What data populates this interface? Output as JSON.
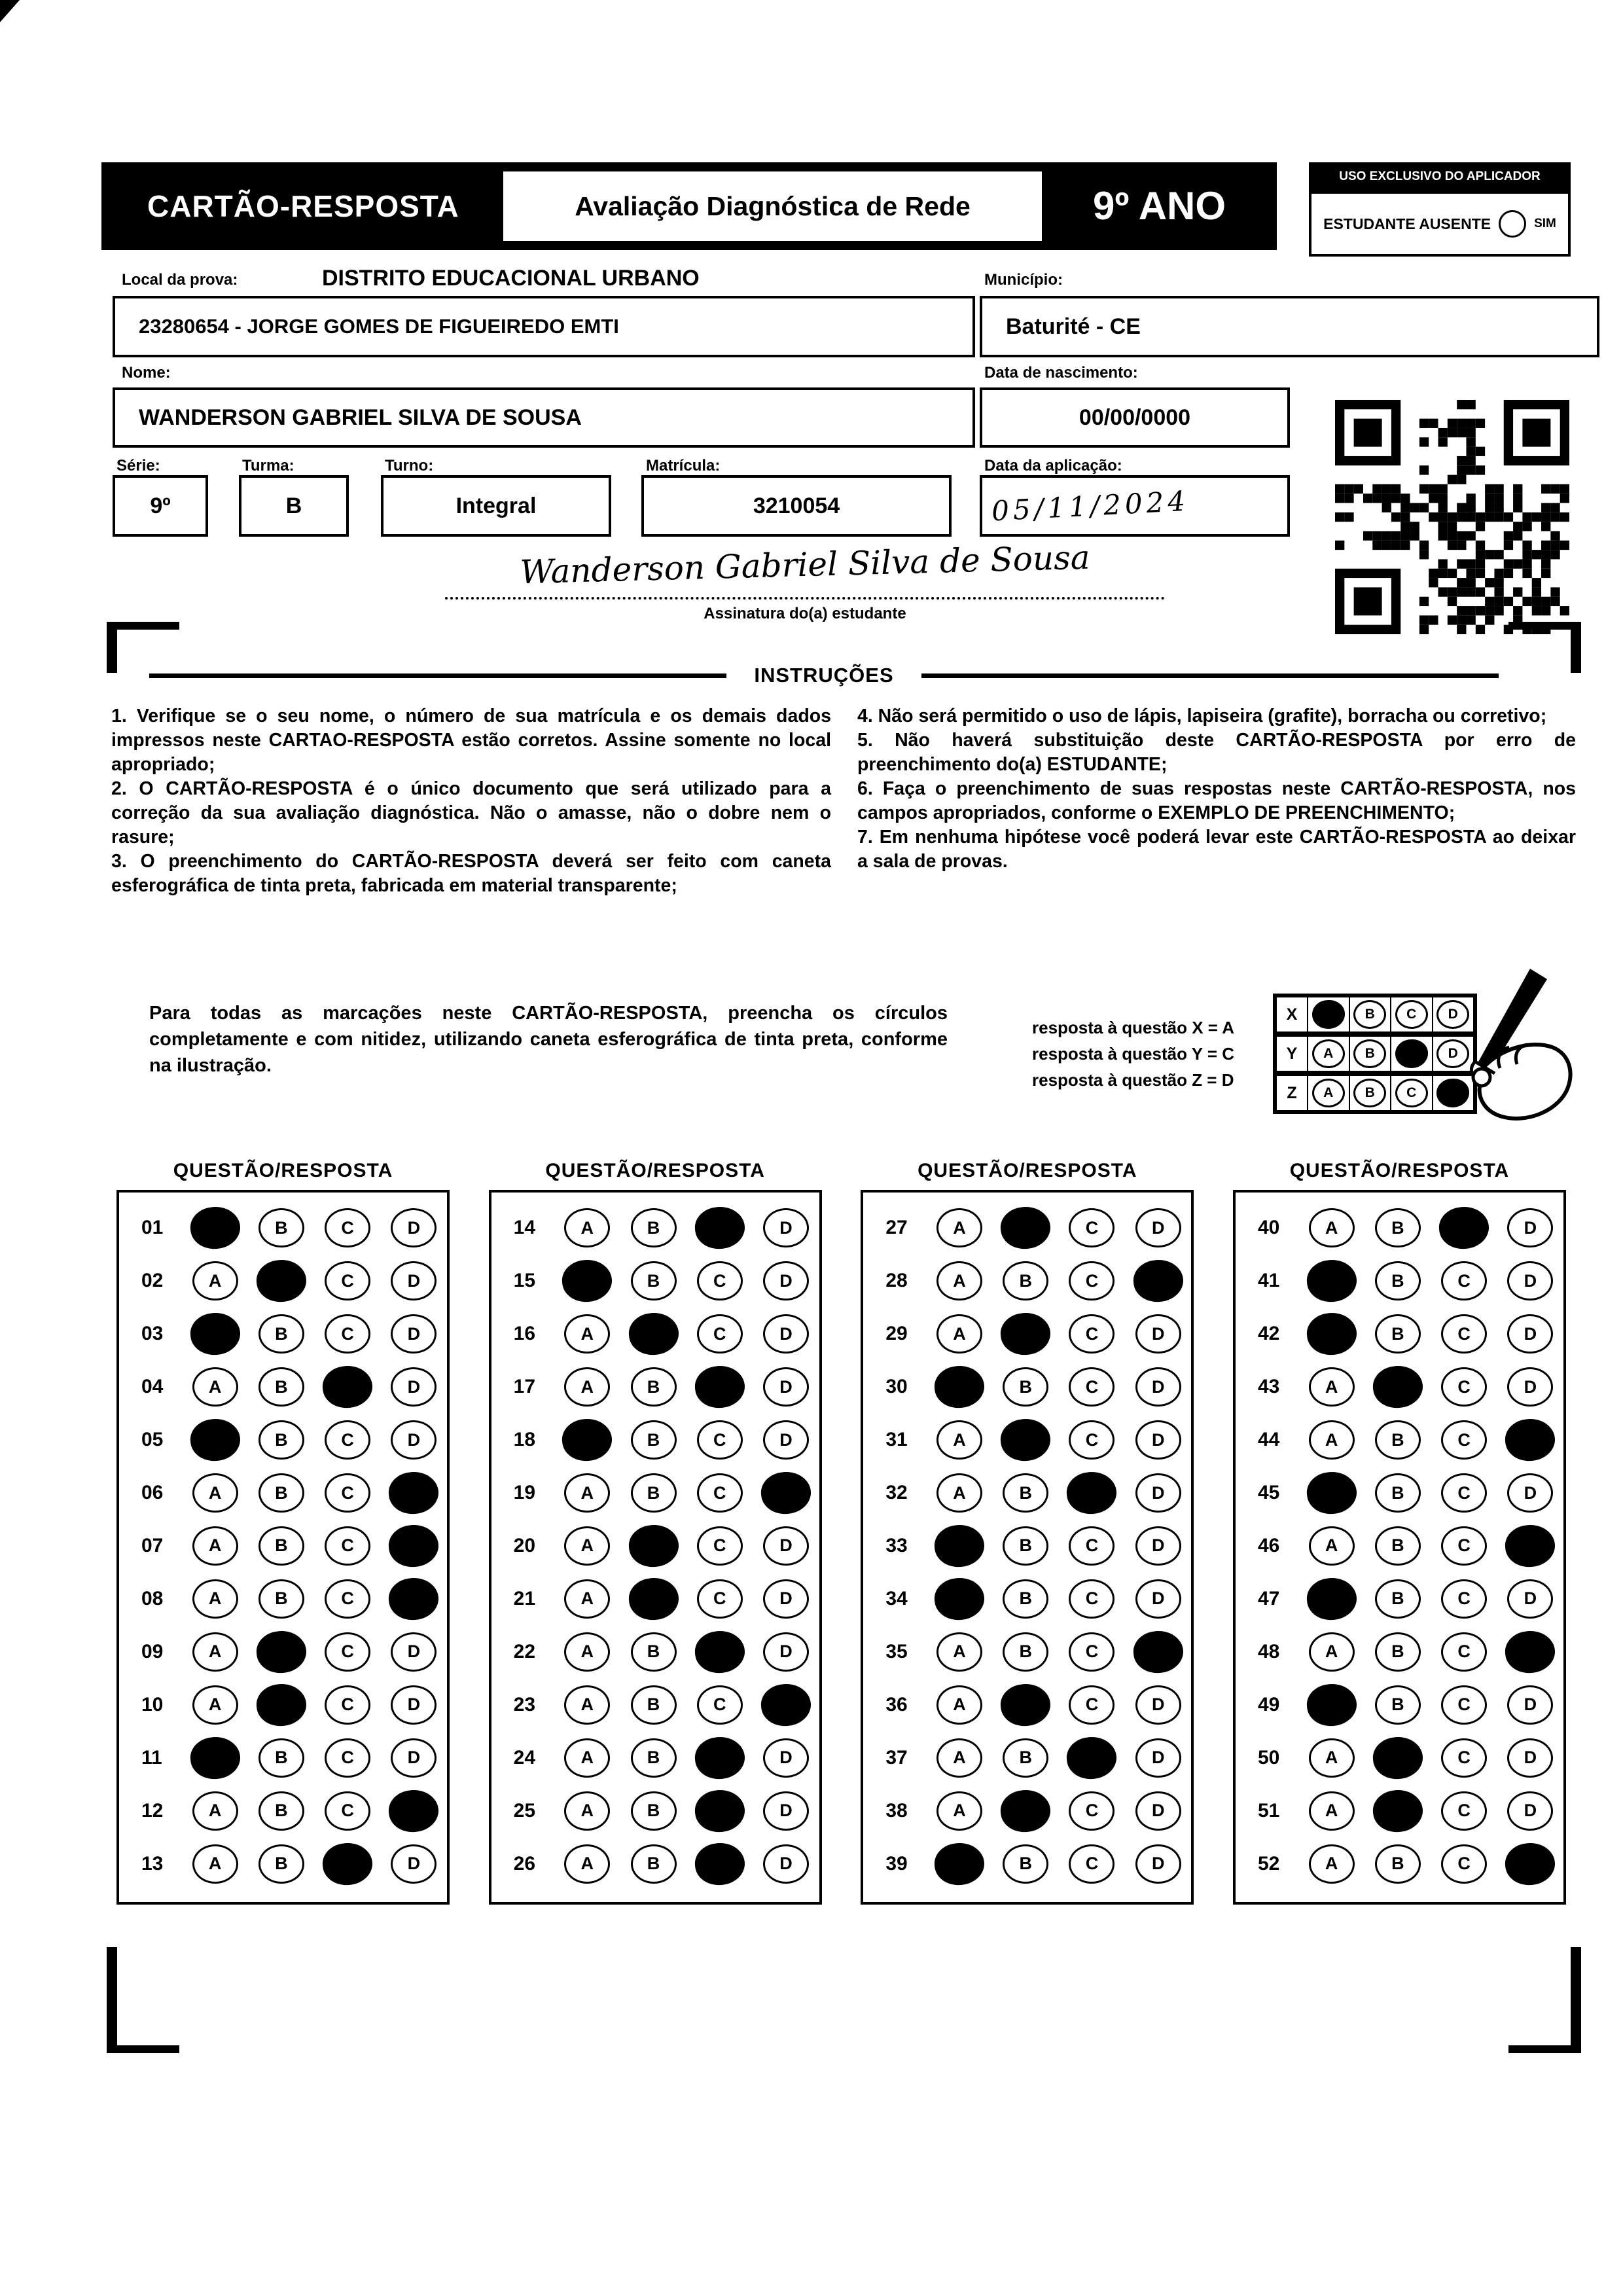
{
  "header": {
    "title": "CARTÃO-RESPOSTA",
    "subtitle": "Avaliação Diagnóstica de Rede",
    "grade": "9º ANO"
  },
  "aplicador": {
    "title": "USO EXCLUSIVO DO APLICADOR",
    "absent_label": "ESTUDANTE AUSENTE",
    "absent_option": "SIM"
  },
  "form": {
    "local_label": "Local da prova:",
    "local_value": "DISTRITO EDUCACIONAL URBANO",
    "school_value": "23280654 - JORGE GOMES DE FIGUEIREDO EMTI",
    "municipio_label": "Município:",
    "municipio_value": "Baturité - CE",
    "nome_label": "Nome:",
    "nome_value": "WANDERSON GABRIEL SILVA DE SOUSA",
    "nascimento_label": "Data de nascimento:",
    "nascimento_value": "00/00/0000",
    "serie_label": "Série:",
    "serie_value": "9º",
    "turma_label": "Turma:",
    "turma_value": "B",
    "turno_label": "Turno:",
    "turno_value": "Integral",
    "matricula_label": "Matrícula:",
    "matricula_value": "3210054",
    "aplicacao_label": "Data da aplicação:",
    "aplicacao_value": "05/11/2024",
    "assinatura_handwritten": "Wanderson Gabriel Silva de Sousa",
    "assinatura_label": "Assinatura do(a) estudante"
  },
  "instructions": {
    "title": "INSTRUÇÕES",
    "left": [
      "1. Verifique se o seu nome, o número de sua matrícula e os demais dados impressos neste CARTAO-RESPOSTA estão corretos. Assine somente no local apropriado;",
      "2. O CARTÃO-RESPOSTA é o único documento que será utilizado para a correção da sua avaliação diagnóstica. Não o amasse, não o dobre nem o rasure;",
      "3. O preenchimento do CARTÃO-RESPOSTA deverá ser feito com caneta esferográfica de tinta preta, fabricada em material transparente;"
    ],
    "right": [
      "4. Não será permitido o uso de lápis, lapiseira (grafite), borracha ou corretivo;",
      "5. Não haverá substituição deste CARTÃO-RESPOSTA por erro de preenchimento do(a) ESTUDANTE;",
      "6. Faça o preenchimento de suas respostas neste CARTÃO-RESPOSTA, nos campos apropriados, conforme o EXEMPLO DE PREENCHIMENTO;",
      "7. Em nenhuma hipótese você poderá levar este CARTÃO-RESPOSTA ao deixar a sala de provas."
    ]
  },
  "example": {
    "text": "Para todas as marcações neste CARTÃO-RESPOSTA, preencha os círculos completamente e com nitidez, utilizando caneta esferográfica de tinta preta, conforme na ilustração.",
    "legend": [
      "resposta à questão X = A",
      "resposta à questão Y = C",
      "resposta à questão Z = D"
    ],
    "grid": {
      "options": [
        "A",
        "B",
        "C",
        "D"
      ],
      "rows": [
        {
          "label": "X",
          "answer": "A"
        },
        {
          "label": "Y",
          "answer": "C"
        },
        {
          "label": "Z",
          "answer": "D"
        }
      ]
    }
  },
  "answers": {
    "column_header": "QUESTÃO/RESPOSTA",
    "options": [
      "A",
      "B",
      "C",
      "D"
    ],
    "columns": [
      {
        "questions": [
          {
            "number": "01",
            "marked": "A"
          },
          {
            "number": "02",
            "marked": "B"
          },
          {
            "number": "03",
            "marked": "A"
          },
          {
            "number": "04",
            "marked": "C"
          },
          {
            "number": "05",
            "marked": "A"
          },
          {
            "number": "06",
            "marked": "D"
          },
          {
            "number": "07",
            "marked": "D"
          },
          {
            "number": "08",
            "marked": "D"
          },
          {
            "number": "09",
            "marked": "B"
          },
          {
            "number": "10",
            "marked": "B"
          },
          {
            "number": "11",
            "marked": "A"
          },
          {
            "number": "12",
            "marked": "D"
          },
          {
            "number": "13",
            "marked": "C"
          }
        ]
      },
      {
        "questions": [
          {
            "number": "14",
            "marked": "C"
          },
          {
            "number": "15",
            "marked": "A"
          },
          {
            "number": "16",
            "marked": "B"
          },
          {
            "number": "17",
            "marked": "C"
          },
          {
            "number": "18",
            "marked": "A"
          },
          {
            "number": "19",
            "marked": "D"
          },
          {
            "number": "20",
            "marked": "B"
          },
          {
            "number": "21",
            "marked": "B"
          },
          {
            "number": "22",
            "marked": "C"
          },
          {
            "number": "23",
            "marked": "D"
          },
          {
            "number": "24",
            "marked": "C"
          },
          {
            "number": "25",
            "marked": "C"
          },
          {
            "number": "26",
            "marked": "C"
          }
        ]
      },
      {
        "questions": [
          {
            "number": "27",
            "marked": "B"
          },
          {
            "number": "28",
            "marked": "D"
          },
          {
            "number": "29",
            "marked": "B"
          },
          {
            "number": "30",
            "marked": "A"
          },
          {
            "number": "31",
            "marked": "B"
          },
          {
            "number": "32",
            "marked": "C"
          },
          {
            "number": "33",
            "marked": "A"
          },
          {
            "number": "34",
            "marked": "A"
          },
          {
            "number": "35",
            "marked": "D"
          },
          {
            "number": "36",
            "marked": "B"
          },
          {
            "number": "37",
            "marked": "C"
          },
          {
            "number": "38",
            "marked": "B"
          },
          {
            "number": "39",
            "marked": "A"
          }
        ]
      },
      {
        "questions": [
          {
            "number": "40",
            "marked": "C"
          },
          {
            "number": "41",
            "marked": "A"
          },
          {
            "number": "42",
            "marked": "A"
          },
          {
            "number": "43",
            "marked": "B"
          },
          {
            "number": "44",
            "marked": "D"
          },
          {
            "number": "45",
            "marked": "A"
          },
          {
            "number": "46",
            "marked": "D"
          },
          {
            "number": "47",
            "marked": "A"
          },
          {
            "number": "48",
            "marked": "D"
          },
          {
            "number": "49",
            "marked": "A"
          },
          {
            "number": "50",
            "marked": "B"
          },
          {
            "number": "51",
            "marked": "B"
          },
          {
            "number": "52",
            "marked": "D"
          }
        ]
      }
    ]
  }
}
